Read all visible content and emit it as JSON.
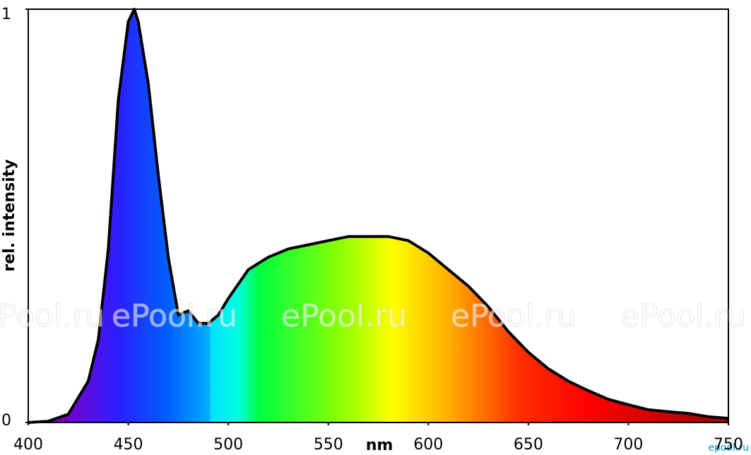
{
  "chart_data": {
    "type": "area",
    "ylabel": "rel. intensity",
    "xlabel": "nm",
    "watermark": "ePool.ru",
    "corner_mark": "epool.ru",
    "xlim": [
      400,
      750
    ],
    "ylim": [
      0,
      1
    ],
    "xticks": [
      400,
      450,
      500,
      550,
      600,
      650,
      700,
      750
    ],
    "yticks": [
      0,
      1
    ],
    "x": [
      400,
      410,
      420,
      430,
      435,
      440,
      445,
      450,
      453,
      455,
      460,
      465,
      470,
      475,
      480,
      485,
      490,
      495,
      500,
      510,
      520,
      530,
      540,
      550,
      560,
      570,
      580,
      590,
      600,
      610,
      620,
      630,
      640,
      650,
      660,
      670,
      680,
      690,
      700,
      710,
      720,
      730,
      740,
      750
    ],
    "values": [
      0,
      0.003,
      0.02,
      0.1,
      0.2,
      0.42,
      0.78,
      0.97,
      1.0,
      0.97,
      0.82,
      0.6,
      0.4,
      0.26,
      0.27,
      0.24,
      0.24,
      0.26,
      0.3,
      0.37,
      0.4,
      0.42,
      0.43,
      0.44,
      0.45,
      0.45,
      0.45,
      0.44,
      0.41,
      0.37,
      0.33,
      0.28,
      0.22,
      0.17,
      0.13,
      0.1,
      0.077,
      0.056,
      0.043,
      0.031,
      0.026,
      0.022,
      0.014,
      0.01
    ]
  }
}
